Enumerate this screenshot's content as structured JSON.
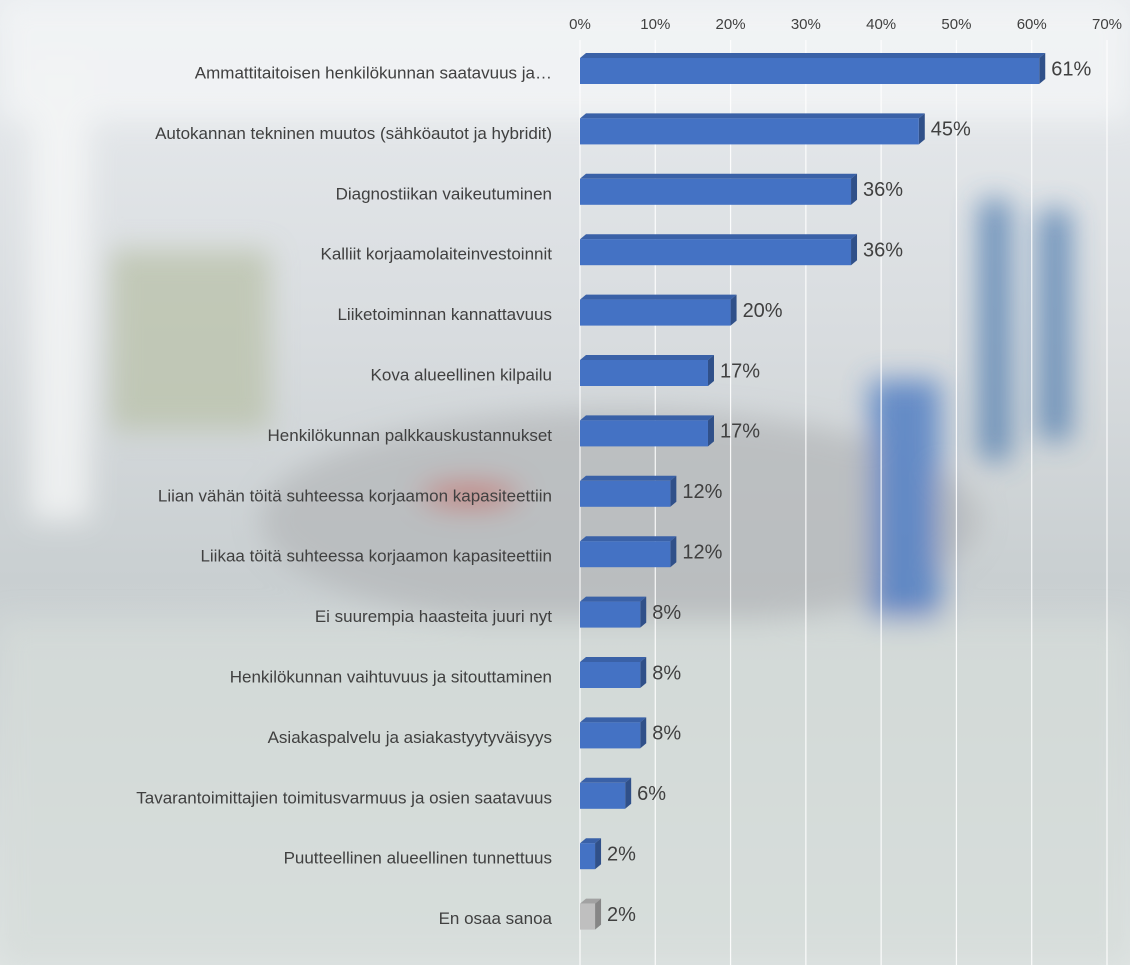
{
  "chart_data": {
    "type": "bar",
    "orientation": "horizontal",
    "categories": [
      "Ammattitaitoisen henkilökunnan saatavuus ja…",
      "Autokannan tekninen muutos (sähköautot ja hybridit)",
      "Diagnostiikan vaikeutuminen",
      "Kalliit korjaamolaiteinvestoinnit",
      "Liiketoiminnan kannattavuus",
      "Kova alueellinen kilpailu",
      "Henkilökunnan palkkauskustannukset",
      "Liian vähän töitä suhteessa korjaamon kapasiteettiin",
      "Liikaa töitä suhteessa korjaamon kapasiteettiin",
      "Ei suurempia haasteita juuri nyt",
      "Henkilökunnan vaihtuvuus ja sitouttaminen",
      "Asiakaspalvelu ja asiakastyytyväisyys",
      "Tavarantoimittajien toimitusvarmuus ja osien saatavuus",
      "Puutteellinen alueellinen tunnettuus",
      "En osaa sanoa"
    ],
    "values": [
      61,
      45,
      36,
      36,
      20,
      17,
      17,
      12,
      12,
      8,
      8,
      8,
      6,
      2,
      2
    ],
    "value_labels": [
      "61%",
      "45%",
      "36%",
      "36%",
      "20%",
      "17%",
      "17%",
      "12%",
      "12%",
      "8%",
      "8%",
      "8%",
      "6%",
      "2%",
      "2%"
    ],
    "colors": [
      "#4472c4",
      "#4472c4",
      "#4472c4",
      "#4472c4",
      "#4472c4",
      "#4472c4",
      "#4472c4",
      "#4472c4",
      "#4472c4",
      "#4472c4",
      "#4472c4",
      "#4472c4",
      "#4472c4",
      "#4472c4",
      "#bfbfbf"
    ],
    "xlim": [
      0,
      70
    ],
    "xticks": [
      {
        "value": 0,
        "label": "0%"
      },
      {
        "value": 10,
        "label": "10%"
      },
      {
        "value": 20,
        "label": "20%"
      },
      {
        "value": 30,
        "label": "30%"
      },
      {
        "value": 40,
        "label": "40%"
      },
      {
        "value": 50,
        "label": "50%"
      },
      {
        "value": 60,
        "label": "60%"
      },
      {
        "value": 70,
        "label": "70%"
      }
    ],
    "grid": true
  }
}
